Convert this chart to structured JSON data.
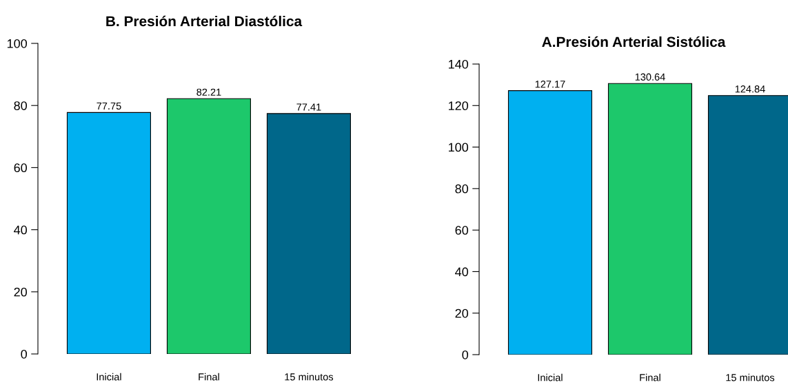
{
  "chart_data": [
    {
      "type": "bar",
      "title": "B. Presión Arterial Diastólica",
      "categories": [
        "Inicial",
        "Final",
        "15 minutos"
      ],
      "values": [
        77.75,
        82.21,
        77.41
      ],
      "colors": [
        "#00b0f0",
        "#1dc86b",
        "#00678a"
      ],
      "ylim": [
        0,
        100
      ],
      "yticks": [
        0,
        20,
        40,
        60,
        80,
        100
      ],
      "data_labels": true,
      "grid": false
    },
    {
      "type": "bar",
      "title": "A.Presión Arterial Sistólica",
      "categories": [
        "Inicial",
        "Final",
        "15 minutos"
      ],
      "values": [
        127.17,
        130.64,
        124.84
      ],
      "colors": [
        "#00b0f0",
        "#1dc86b",
        "#00678a"
      ],
      "ylim": [
        0,
        140
      ],
      "yticks": [
        0,
        20,
        40,
        60,
        80,
        100,
        120,
        140
      ],
      "data_labels": true,
      "grid": false
    }
  ]
}
